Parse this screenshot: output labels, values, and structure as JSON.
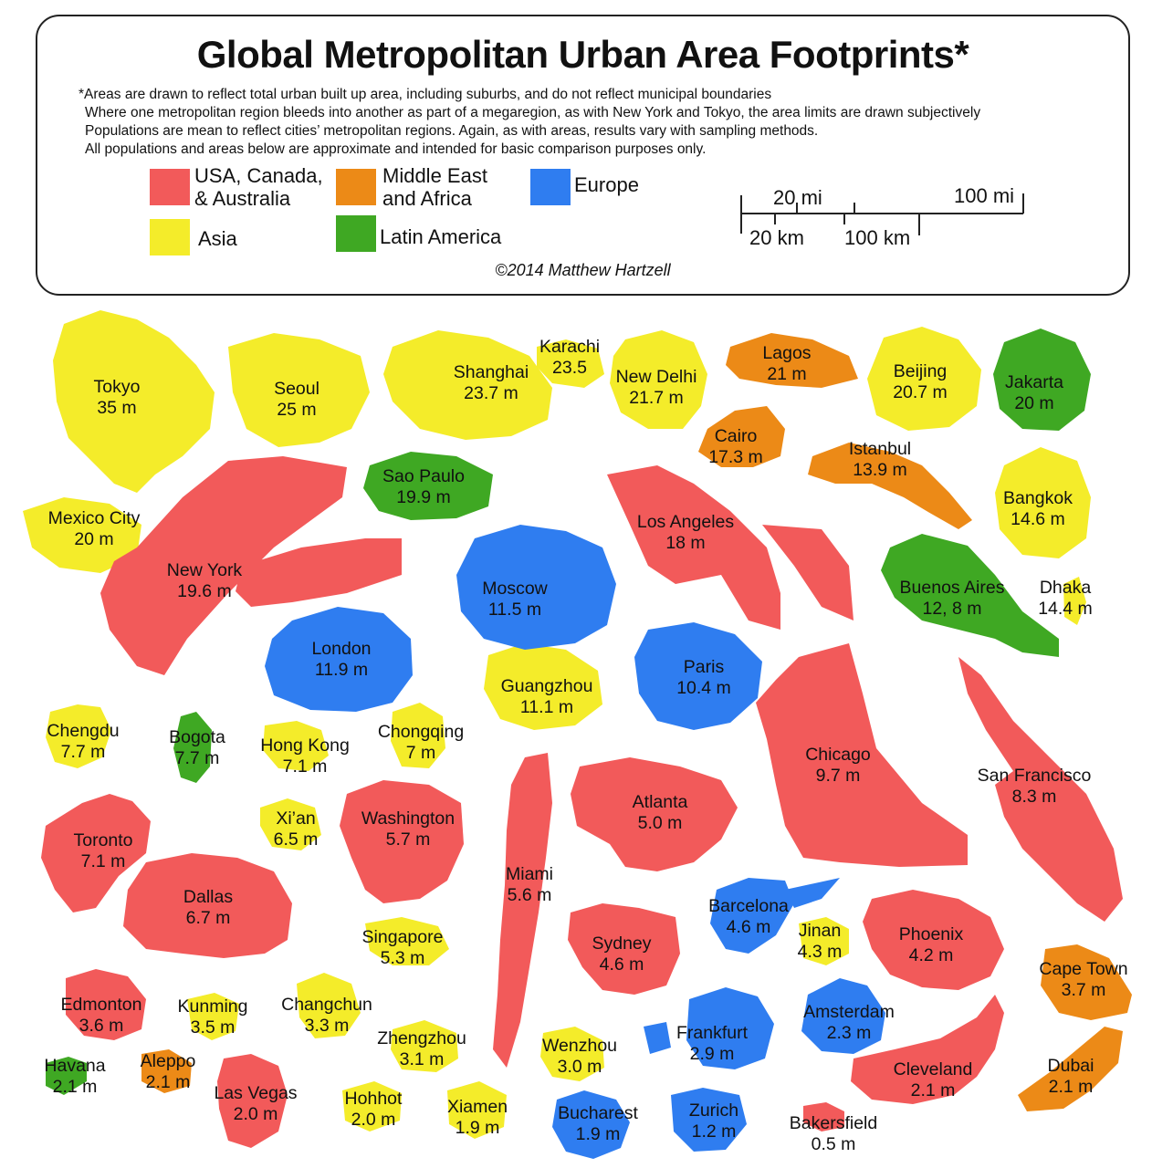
{
  "title": "Global Metropolitan Urban Area Footprints*",
  "notes": [
    "*Areas are drawn to reflect total urban built up area, including suburbs, and do not reflect municipal boundaries",
    "Where one metropolitan region bleeds into another as part of a megaregion, as with New York and Tokyo, the area limits are drawn subjectively",
    "Populations are mean to reflect cities’ metropolitan regions. Again, as with areas, results vary with sampling methods.",
    "All populations and areas below are approximate and intended for basic comparison purposes only."
  ],
  "legend": [
    {
      "key": "usa",
      "lines": [
        "USA, Canada,",
        "& Australia"
      ],
      "color": "#f25a5a"
    },
    {
      "key": "mea",
      "lines": [
        "Middle East",
        "and Africa"
      ],
      "color": "#ec8a17"
    },
    {
      "key": "eur",
      "lines": [
        "Europe"
      ],
      "color": "#2f7df0"
    },
    {
      "key": "asia",
      "lines": [
        "Asia"
      ],
      "color": "#f4ec2a"
    },
    {
      "key": "lat",
      "lines": [
        "Latin America"
      ],
      "color": "#3fa823"
    }
  ],
  "scale": {
    "mi_small": "20 mi",
    "mi_large": "100 mi",
    "km_small": "20 km",
    "km_large": "100 km"
  },
  "copyright": "©2014 Matthew Hartzell",
  "cities": [
    {
      "name": "Tokyo",
      "pop": "35 m",
      "region": "asia"
    },
    {
      "name": "Seoul",
      "pop": "25 m",
      "region": "asia"
    },
    {
      "name": "Shanghai",
      "pop": "23.7 m",
      "region": "asia"
    },
    {
      "name": "Karachi",
      "pop": "23.5",
      "region": "asia"
    },
    {
      "name": "New Delhi",
      "pop": "21.7 m",
      "region": "asia"
    },
    {
      "name": "Lagos",
      "pop": "21 m",
      "region": "mea"
    },
    {
      "name": "Beijing",
      "pop": "20.7 m",
      "region": "asia"
    },
    {
      "name": "Jakarta",
      "pop": "20 m",
      "region": "lat"
    },
    {
      "name": "Cairo",
      "pop": "17.3 m",
      "region": "mea"
    },
    {
      "name": "Istanbul",
      "pop": "13.9 m",
      "region": "mea"
    },
    {
      "name": "Sao Paulo",
      "pop": "19.9 m",
      "region": "lat"
    },
    {
      "name": "Mexico City",
      "pop": "20 m",
      "region": "asia"
    },
    {
      "name": "Los Angeles",
      "pop": "18 m",
      "region": "usa"
    },
    {
      "name": "Bangkok",
      "pop": "14.6 m",
      "region": "asia"
    },
    {
      "name": "New York",
      "pop": "19.6 m",
      "region": "usa"
    },
    {
      "name": "Moscow",
      "pop": "11.5 m",
      "region": "eur"
    },
    {
      "name": "Buenos Aires",
      "pop": "12, 8 m",
      "region": "lat"
    },
    {
      "name": "Dhaka",
      "pop": "14.4 m",
      "region": "asia"
    },
    {
      "name": "London",
      "pop": "11.9 m",
      "region": "eur"
    },
    {
      "name": "Paris",
      "pop": "10.4 m",
      "region": "eur"
    },
    {
      "name": "Guangzhou",
      "pop": "11.1 m",
      "region": "asia"
    },
    {
      "name": "Chengdu",
      "pop": "7.7 m",
      "region": "asia"
    },
    {
      "name": "Bogota",
      "pop": "7.7 m",
      "region": "lat"
    },
    {
      "name": "Hong Kong",
      "pop": "7.1 m",
      "region": "asia"
    },
    {
      "name": "Chongqing",
      "pop": "7 m",
      "region": "asia"
    },
    {
      "name": "Chicago",
      "pop": "9.7 m",
      "region": "usa"
    },
    {
      "name": "San Francisco",
      "pop": "8.3 m",
      "region": "usa"
    },
    {
      "name": "Atlanta",
      "pop": "5.0 m",
      "region": "usa"
    },
    {
      "name": "Xi’an",
      "pop": "6.5 m",
      "region": "asia"
    },
    {
      "name": "Washington",
      "pop": "5.7 m",
      "region": "usa"
    },
    {
      "name": "Toronto",
      "pop": "7.1 m",
      "region": "usa"
    },
    {
      "name": "Miami",
      "pop": "5.6 m",
      "region": "usa"
    },
    {
      "name": "Dallas",
      "pop": "6.7 m",
      "region": "usa"
    },
    {
      "name": "Barcelona",
      "pop": "4.6 m",
      "region": "eur"
    },
    {
      "name": "Jinan",
      "pop": "4.3 m",
      "region": "asia"
    },
    {
      "name": "Phoenix",
      "pop": "4.2 m",
      "region": "usa"
    },
    {
      "name": "Singapore",
      "pop": "5.3 m",
      "region": "asia"
    },
    {
      "name": "Sydney",
      "pop": "4.6 m",
      "region": "usa"
    },
    {
      "name": "Cape Town",
      "pop": "3.7 m",
      "region": "mea"
    },
    {
      "name": "Edmonton",
      "pop": "3.6 m",
      "region": "usa"
    },
    {
      "name": "Kunming",
      "pop": "3.5 m",
      "region": "asia"
    },
    {
      "name": "Changchun",
      "pop": "3.3 m",
      "region": "asia"
    },
    {
      "name": "Amsterdam",
      "pop": "2.3 m",
      "region": "eur"
    },
    {
      "name": "Zhengzhou",
      "pop": "3.1 m",
      "region": "asia"
    },
    {
      "name": "Frankfurt",
      "pop": "2.9 m",
      "region": "eur"
    },
    {
      "name": "Wenzhou",
      "pop": "3.0 m",
      "region": "asia"
    },
    {
      "name": "Havana",
      "pop": "2.1 m",
      "region": "lat"
    },
    {
      "name": "Aleppo",
      "pop": "2.1 m",
      "region": "mea"
    },
    {
      "name": "Las Vegas",
      "pop": "2.0 m",
      "region": "usa"
    },
    {
      "name": "Cleveland",
      "pop": "2.1 m",
      "region": "usa"
    },
    {
      "name": "Dubai",
      "pop": "2.1 m",
      "region": "mea"
    },
    {
      "name": "Hohhot",
      "pop": "2.0 m",
      "region": "asia"
    },
    {
      "name": "Xiamen",
      "pop": "1.9 m",
      "region": "asia"
    },
    {
      "name": "Bucharest",
      "pop": "1.9 m",
      "region": "eur"
    },
    {
      "name": "Zurich",
      "pop": "1.2 m",
      "region": "eur"
    },
    {
      "name": "Bakersfield",
      "pop": "0.5 m",
      "region": "usa"
    }
  ]
}
